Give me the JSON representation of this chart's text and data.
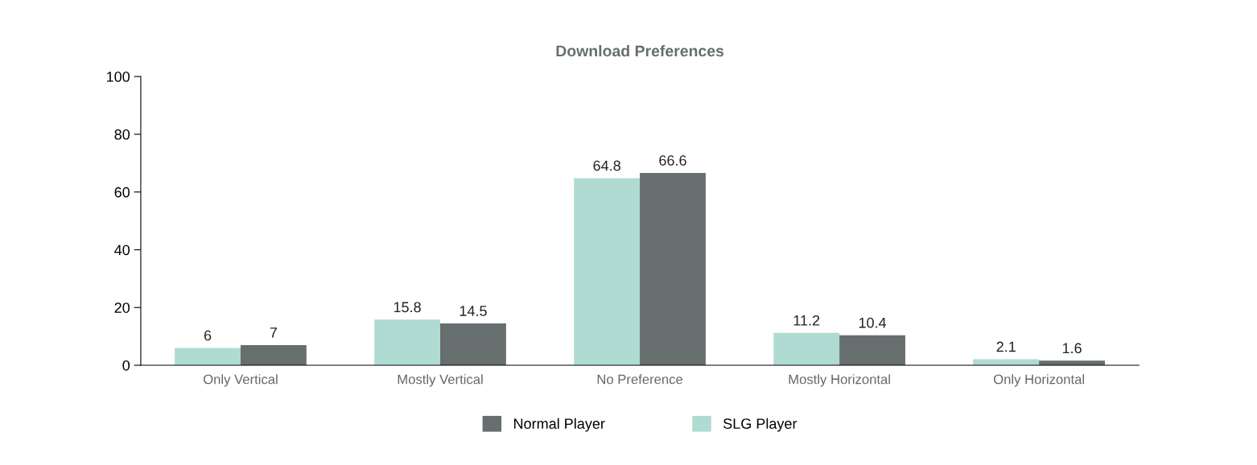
{
  "chart_data": {
    "type": "bar",
    "title": "Download Preferences",
    "categories": [
      "Only Vertical",
      "Mostly Vertical",
      "No Preference",
      "Mostly Horizontal",
      "Only Horizontal"
    ],
    "series": [
      {
        "name": "SLG Player",
        "color": "#b0dbd2",
        "values": [
          6,
          15.8,
          64.8,
          11.2,
          2.1
        ]
      },
      {
        "name": "Normal Player",
        "color": "#666e6e",
        "values": [
          7,
          14.5,
          66.6,
          10.4,
          1.6
        ]
      }
    ],
    "ylim": [
      0,
      100
    ],
    "yticks": [
      0,
      20,
      40,
      60,
      80,
      100
    ],
    "grid": false,
    "legend": "bottom",
    "data_labels": true
  }
}
